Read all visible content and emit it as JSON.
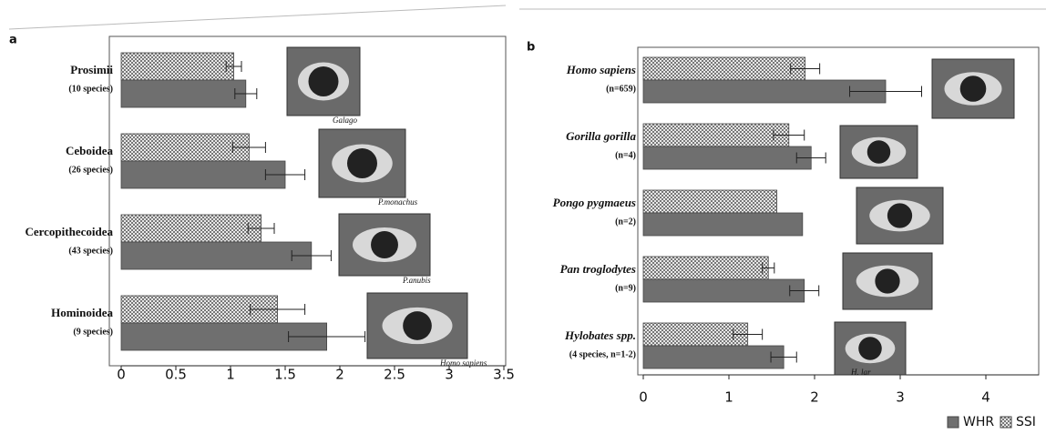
{
  "chart_data": [
    {
      "type": "bar",
      "orientation": "horizontal",
      "panel_label": "a",
      "categories": [
        "Prosimii",
        "Ceboidea",
        "Cercopithecoidea",
        "Hominoidea"
      ],
      "category_sublabels": [
        "(10 species)",
        "(26 species)",
        "(43 species)",
        "(9 species)"
      ],
      "photo_captions": [
        "Galago",
        "P.monachus",
        "P.anubis",
        "Homo sapiens"
      ],
      "series": [
        {
          "name": "SSI",
          "color": "#8a8a8a",
          "values": [
            1.03,
            1.17,
            1.28,
            1.43
          ],
          "errors": [
            0.07,
            0.15,
            0.12,
            0.25
          ]
        },
        {
          "name": "WHR",
          "color": "#6f6f6f",
          "values": [
            1.14,
            1.5,
            1.74,
            1.88
          ],
          "errors": [
            0.1,
            0.18,
            0.18,
            0.35
          ]
        }
      ],
      "xlim": [
        0,
        3.5
      ],
      "xticks": [
        0,
        0.5,
        1,
        1.5,
        2,
        2.5,
        3,
        3.5
      ]
    },
    {
      "type": "bar",
      "orientation": "horizontal",
      "panel_label": "b",
      "categories": [
        "Homo sapiens",
        "Gorilla gorilla",
        "Pongo pygmaeus",
        "Pan troglodytes",
        "Hylobates spp."
      ],
      "category_sublabels": [
        "(n=659)",
        "(n=4)",
        "(n=2)",
        "(n=9)",
        "(4 species, n=1-2)"
      ],
      "photo_captions": [
        null,
        null,
        null,
        null,
        "H. lar"
      ],
      "series": [
        {
          "name": "SSI",
          "color": "#8a8a8a",
          "values": [
            1.89,
            1.7,
            1.56,
            1.46,
            1.22
          ],
          "errors": [
            0.17,
            0.18,
            null,
            0.07,
            0.17
          ]
        },
        {
          "name": "WHR",
          "color": "#6f6f6f",
          "values": [
            2.83,
            1.96,
            1.86,
            1.88,
            1.64
          ],
          "errors": [
            0.42,
            0.17,
            null,
            0.17,
            0.15
          ]
        }
      ],
      "xlim": [
        0,
        4.5
      ],
      "xticks": [
        0,
        1,
        2,
        3,
        4
      ],
      "legend": "bottom-right"
    }
  ]
}
